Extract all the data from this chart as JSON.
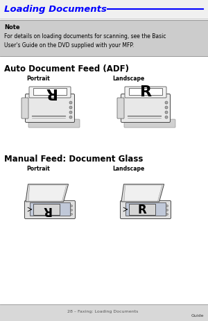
{
  "page_bg": "#ffffff",
  "title_text": "Loading Documents",
  "title_color": "#0000ff",
  "title_fontsize": 9.5,
  "underline_color": "#0000ff",
  "note_box_bg": "#cccccc",
  "note_label": "Note",
  "note_label_fontsize": 6,
  "note_body": "For details on loading documents for scanning, see the Basic\nUser's Guide on the DVD supplied with your MFP.",
  "note_body_fontsize": 5.5,
  "section1_title": "Auto Document Feed (ADF)",
  "section1_title_fontsize": 8.5,
  "section1_portrait_label": "Portrait",
  "section1_landscape_label": "Landscape",
  "section2_title": "Manual Feed: Document Glass",
  "section2_title_fontsize": 8.5,
  "section2_portrait_label": "Portrait",
  "section2_landscape_label": "Landscape",
  "label_fontsize": 5.5,
  "footer_text": "28 – Faxing: Loading Documents",
  "footer_right": "Guide",
  "footer_fontsize": 4.5,
  "fig_width": 3.0,
  "fig_height": 4.64,
  "dpi": 100
}
